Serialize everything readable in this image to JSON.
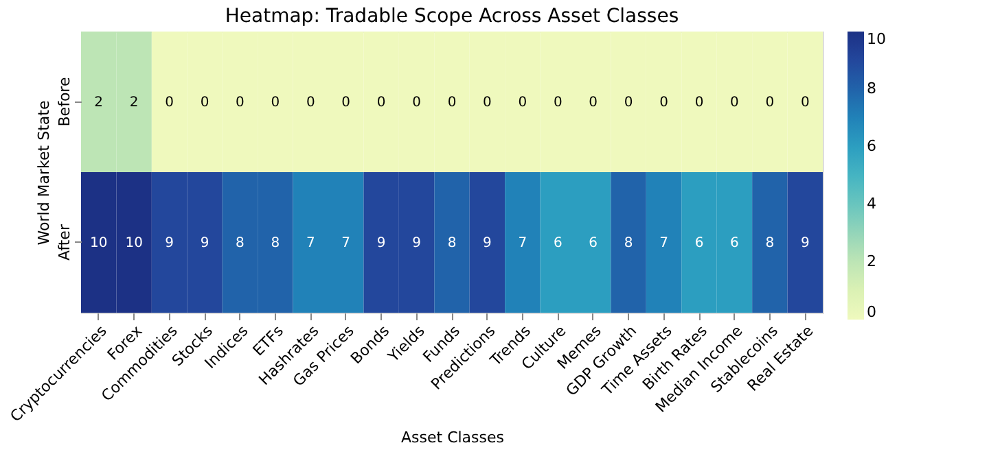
{
  "chart_data": {
    "type": "heatmap",
    "title": "Heatmap: Tradable Scope Across Asset Classes",
    "xlabel": "Asset Classes",
    "ylabel": "World Market State",
    "categories": [
      "Cryptocurrencies",
      "Forex",
      "Commodities",
      "Stocks",
      "Indices",
      "ETFs",
      "Hashrates",
      "Gas Prices",
      "Bonds",
      "Yields",
      "Funds",
      "Predictions",
      "Trends",
      "Culture",
      "Memes",
      "GDP Growth",
      "Time Assets",
      "Birth Rates",
      "Median Income",
      "Stablecoins",
      "Real Estate"
    ],
    "y_categories": [
      "Before",
      "After"
    ],
    "cells": [
      [
        2,
        2,
        0,
        0,
        0,
        0,
        0,
        0,
        0,
        0,
        0,
        0,
        0,
        0,
        0,
        0,
        0,
        0,
        0,
        0,
        0
      ],
      [
        10,
        10,
        9,
        9,
        8,
        8,
        7,
        7,
        9,
        9,
        8,
        9,
        7,
        6,
        6,
        8,
        7,
        6,
        6,
        8,
        9
      ]
    ],
    "clim": [
      0,
      10
    ],
    "cticks": [
      0,
      2,
      4,
      6,
      8,
      10
    ],
    "data_labels": true
  }
}
